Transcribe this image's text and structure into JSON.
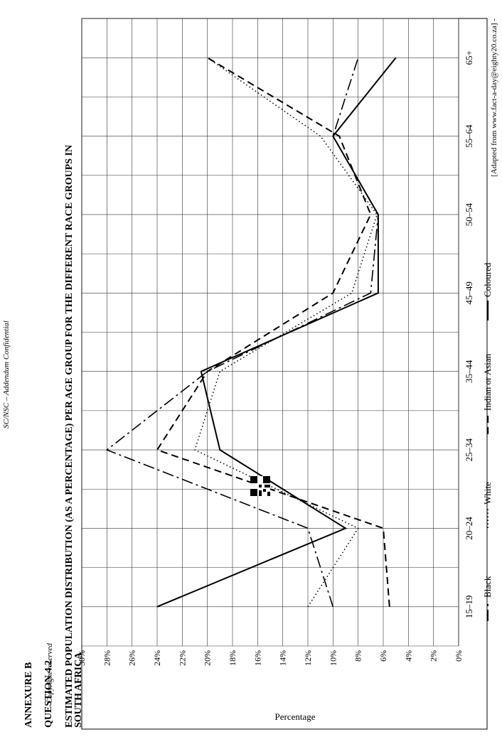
{
  "header": {
    "code": "SC/NSC – Addendum Confidential",
    "annexure": "ANNEXURE B",
    "question": "QUESTION 4.2",
    "title_line1": "ESTIMATED POPULATION DISTRIBUTION (AS A PERCENTAGE) PER AGE GROUP FOR THE DIFFERENT RACE GROUPS IN",
    "title_line2": "SOUTH AFRICA"
  },
  "footer": {
    "copyright": "Copyright reserved",
    "source": "[Adapted from www.fact-a-day@eighty20.co.za] -"
  },
  "chart_data": {
    "type": "line",
    "title": "ESTIMATED POPULATION DISTRIBUTION (AS A PERCENTAGE) PER AGE GROUP FOR THE DIFFERENT RACE GROUPS IN SOUTH AFRICA",
    "xlabel": "",
    "ylabel": "Percentage",
    "categories": [
      "15–19",
      "20–24",
      "25–34",
      "35–44",
      "45–49",
      "50–54",
      "55–64",
      "65+"
    ],
    "ylim": [
      0,
      30
    ],
    "yticks": [
      "0%",
      "2%",
      "4%",
      "6%",
      "8%",
      "10%",
      "12%",
      "14%",
      "16%",
      "18%",
      "20%",
      "22%",
      "24%",
      "26%",
      "28%",
      "30%"
    ],
    "grid": true,
    "legend": "bottom",
    "series": [
      {
        "name": "Black",
        "style": "dashdot",
        "values": [
          10,
          12,
          28,
          20,
          7,
          6.4,
          10,
          8
        ]
      },
      {
        "name": "White",
        "style": "dotted",
        "values": [
          12,
          8,
          21,
          19,
          8.5,
          6.5,
          11,
          20
        ]
      },
      {
        "name": "Indian or Asian",
        "style": "dashed",
        "values": [
          5.5,
          6,
          24,
          20,
          10,
          7,
          9.5,
          20
        ]
      },
      {
        "name": "Coloured",
        "style": "solid",
        "values": [
          24,
          9,
          19,
          20.5,
          6.4,
          6.4,
          10,
          5
        ]
      }
    ]
  }
}
